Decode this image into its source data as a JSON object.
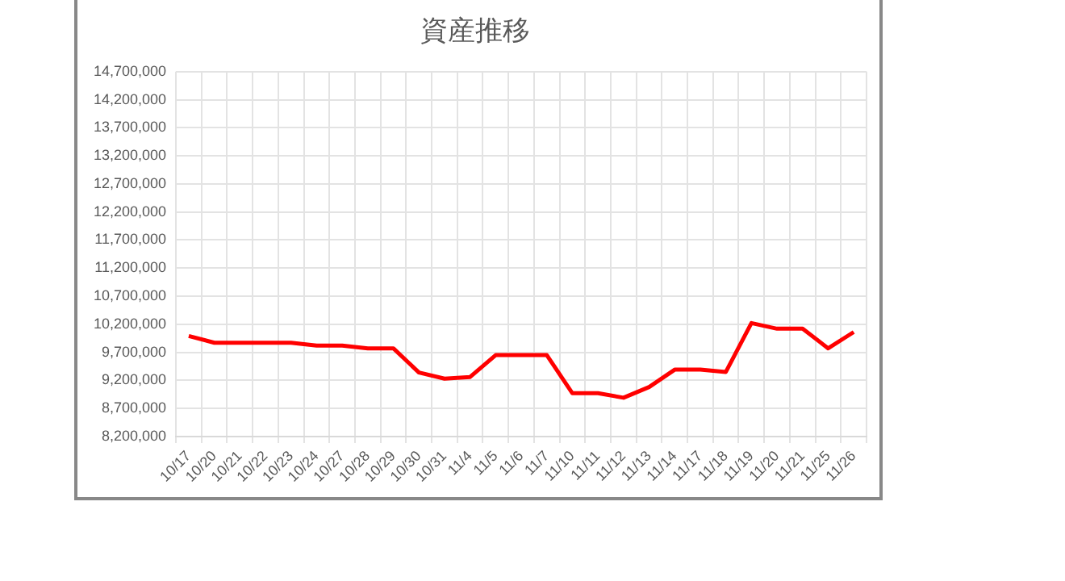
{
  "chart_data": {
    "type": "line",
    "title": "資産推移",
    "categories": [
      "10/17",
      "10/20",
      "10/21",
      "10/22",
      "10/23",
      "10/24",
      "10/27",
      "10/28",
      "10/29",
      "10/30",
      "10/31",
      "11/4",
      "11/5",
      "11/6",
      "11/7",
      "11/10",
      "11/11",
      "11/12",
      "11/13",
      "11/14",
      "11/17",
      "11/18",
      "11/19",
      "11/20",
      "11/21",
      "11/25",
      "11/26"
    ],
    "series": [
      {
        "color": "#ff0000",
        "values": [
          9990000,
          9870000,
          9870000,
          9870000,
          9870000,
          9820000,
          9820000,
          9770000,
          9770000,
          9340000,
          9230000,
          9260000,
          9650000,
          9650000,
          9650000,
          8970000,
          8970000,
          8890000,
          9080000,
          9390000,
          9390000,
          9350000,
          10220000,
          10120000,
          10120000,
          9770000,
          10060000
        ]
      }
    ],
    "ylim": [
      8200000,
      14700000
    ],
    "yticks": [
      {
        "value": 8200000,
        "label": "8,200,000"
      },
      {
        "value": 8700000,
        "label": "8,700,000"
      },
      {
        "value": 9200000,
        "label": "9,200,000"
      },
      {
        "value": 9700000,
        "label": "9,700,000"
      },
      {
        "value": 10200000,
        "label": "10,200,000"
      },
      {
        "value": 10700000,
        "label": "10,700,000"
      },
      {
        "value": 11200000,
        "label": "11,200,000"
      },
      {
        "value": 11700000,
        "label": "11,700,000"
      },
      {
        "value": 12200000,
        "label": "12,200,000"
      },
      {
        "value": 12700000,
        "label": "12,700,000"
      },
      {
        "value": 13200000,
        "label": "13,200,000"
      },
      {
        "value": 13700000,
        "label": "13,700,000"
      },
      {
        "value": 14200000,
        "label": "14,200,000"
      },
      {
        "value": 14700000,
        "label": "14,700,000"
      }
    ],
    "grid": true,
    "legend": false,
    "marker": "none",
    "line_style": "solid"
  }
}
